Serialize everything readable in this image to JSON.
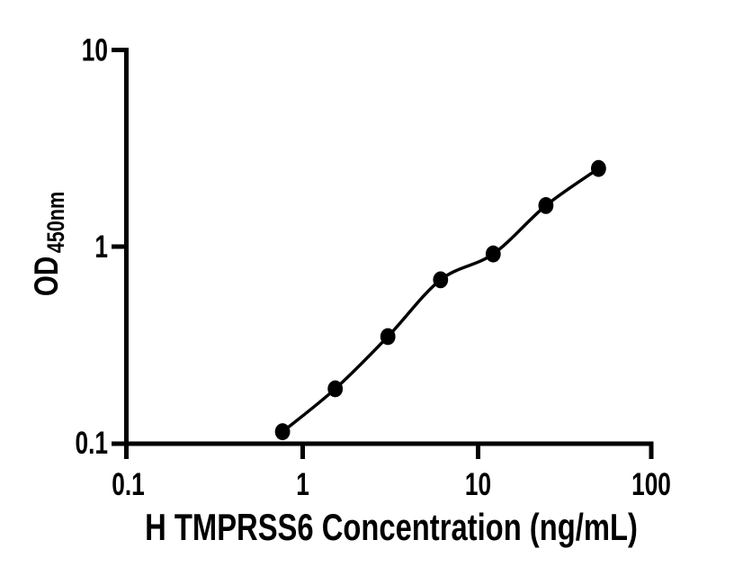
{
  "chart_data": {
    "type": "scatter",
    "title": "",
    "xlabel": "H TMPRSS6 Concentration (ng/mL)",
    "ylabel": "OD",
    "ylabel_subscript": "450nm",
    "xscale": "log",
    "yscale": "log",
    "xlim": [
      0.1,
      100
    ],
    "ylim": [
      0.1,
      10
    ],
    "xticks": [
      "0.1",
      "1",
      "10",
      "100"
    ],
    "yticks": [
      "0.1",
      "1",
      "10"
    ],
    "grid": false,
    "legend": false,
    "x": [
      0.781,
      1.563,
      3.125,
      6.25,
      12.5,
      25,
      50
    ],
    "y": [
      0.115,
      0.19,
      0.35,
      0.68,
      0.92,
      1.62,
      2.5
    ],
    "fit_line": true,
    "marker_color": "#000000",
    "line_color": "#000000",
    "axis_color": "#000000",
    "background_color": "#ffffff"
  }
}
